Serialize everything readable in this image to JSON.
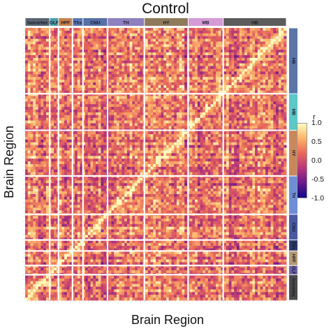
{
  "chart_data": {
    "type": "heatmap",
    "title": "Control",
    "xlabel": "Brain Region",
    "ylabel": "Brain Region",
    "regions_x": [
      "Isocortex",
      "OLF",
      "HPF",
      "TXs",
      "CNU",
      "TH",
      "HY",
      "MB",
      "HB"
    ],
    "region_labels_top": [
      "Isocortex",
      "OLF",
      "HPF",
      "TXs",
      "CNU",
      "TH",
      "HY",
      "MB",
      "HB"
    ],
    "regions_y": [
      "HB",
      "MB",
      "HY",
      "TH",
      "CNU",
      "TXs",
      "HPF",
      "OLF",
      "Isocortex"
    ],
    "region_colors": {
      "Isocortex": "#5a6472",
      "OLF": "#4a9eb0",
      "HPF": "#c8844a",
      "TXs": "#5b79b8",
      "CNU": "#5770a8",
      "TH": "#8e7fc0",
      "HY": "#8f7a5c",
      "MB": "#d49ad6",
      "HB": "#5c5c5c"
    },
    "region_colors_right": {
      "HB": "#5a75a8",
      "MB": "#5cc8c8",
      "HY": "#c9885c",
      "TH": "#6f8ed6",
      "CNU": "#4a5aa0",
      "TXs": "#2a3a6a",
      "HPF": "#b59a74",
      "OLF": "#6a62a8",
      "Isocortex": "#4a4a4a"
    },
    "region_widths": [
      14,
      5,
      8,
      6,
      14,
      21,
      25,
      20,
      36
    ],
    "value_range": [
      -1.0,
      1.0
    ],
    "colorscale": [
      "#0d0887",
      "#6a1a8c",
      "#b73779",
      "#e8685a",
      "#fbb36a",
      "#fcfdbf"
    ],
    "diagonal_value": 1.0,
    "legend": {
      "title": "r",
      "ticks": [
        1.0,
        0.5,
        0.0,
        -0.5,
        -1.0
      ],
      "tick_labels": [
        "1.0",
        "0.5",
        "0.0",
        "-0.5",
        "-1.0"
      ],
      "placement": "right"
    }
  }
}
